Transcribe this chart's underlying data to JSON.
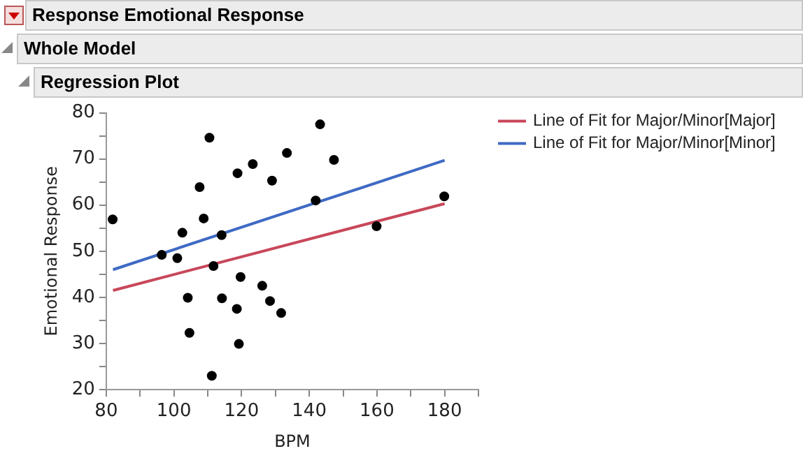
{
  "chart_data": {
    "type": "scatter",
    "title": "Response Emotional Response",
    "subtitle": "Whole Model",
    "annotations": [
      "Regression Plot"
    ],
    "xlabel": "BPM",
    "ylabel": "Emotional Response",
    "xlim": [
      80,
      190
    ],
    "xticks": [
      80,
      {
        "value": 90,
        "label": null
      },
      100,
      {
        "value": 110,
        "label": null
      },
      120,
      {
        "value": 130,
        "label": null
      },
      140,
      {
        "value": 150,
        "label": null
      },
      160,
      {
        "value": 170,
        "label": null
      },
      180,
      {
        "value": 190,
        "label": null
      }
    ],
    "ylim": [
      20,
      80
    ],
    "yticks": [
      20,
      {
        "value": 25,
        "label": null
      },
      30,
      {
        "value": 35,
        "label": null
      },
      40,
      {
        "value": 45,
        "label": null
      },
      50,
      {
        "value": 55,
        "label": null
      },
      60,
      {
        "value": 65,
        "label": null
      },
      70,
      {
        "value": 75,
        "label": null
      },
      80
    ],
    "grid": false,
    "legend": "top right",
    "series": [
      {
        "marker": "circle",
        "color": "#000000",
        "x": [
          81.9,
          110.5,
          143.2,
          133.4,
          147.3,
          123.3,
          118.8,
          129.0,
          107.6,
          141.9,
          179.9,
          108.8,
          102.5,
          114.1,
          159.9,
          96.4,
          101.0,
          111.7,
          119.7,
          126.1,
          104.1,
          114.2,
          128.4,
          118.6,
          131.7,
          104.6,
          119.2,
          111.2
        ],
        "values": [
          56.9,
          74.6,
          77.5,
          71.3,
          69.8,
          68.9,
          66.9,
          65.3,
          63.9,
          61.0,
          61.9,
          57.1,
          54.0,
          53.5,
          55.4,
          49.2,
          48.5,
          46.8,
          44.4,
          42.5,
          39.9,
          39.8,
          39.2,
          37.5,
          36.6,
          32.3,
          29.9,
          23.0
        ]
      },
      {
        "type": "line",
        "name": "Line of Fit for Major/Minor[Major]",
        "marker": "none",
        "color": "#c8475a",
        "x": [
          82,
          180
        ],
        "values": [
          41.5,
          60.3
        ]
      },
      {
        "type": "line",
        "name": "Line of Fit for Major/Minor[Minor]",
        "marker": "none",
        "color": "#3f6ac4",
        "x": [
          82,
          180
        ],
        "values": [
          46.0,
          69.7
        ]
      }
    ]
  }
}
